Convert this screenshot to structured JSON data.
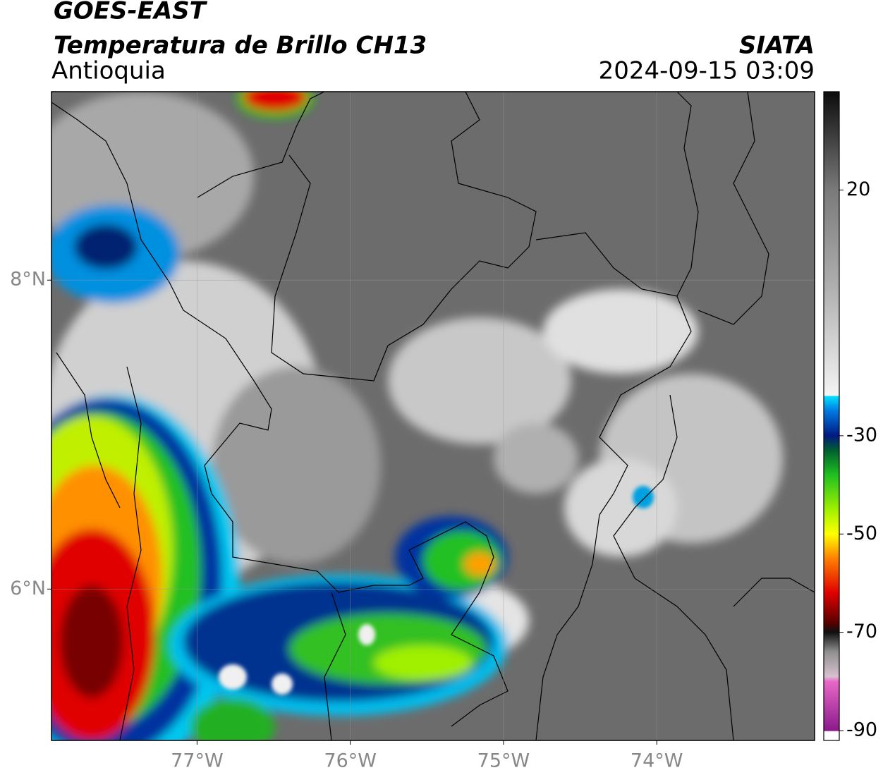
{
  "header": {
    "title": "GOES-EAST",
    "subtitle": "Temperatura de Brillo CH13",
    "region": "Antioquia",
    "source": "SIATA",
    "datetime": "2024-09-15 03:09"
  },
  "map": {
    "xlim": [
      -77.95,
      -72.97
    ],
    "ylim": [
      5.02,
      9.22
    ],
    "xticks": [
      {
        "value": -77,
        "label": "77°W"
      },
      {
        "value": -76,
        "label": "76°W"
      },
      {
        "value": -75,
        "label": "75°W"
      },
      {
        "value": -74,
        "label": "74°W"
      }
    ],
    "yticks": [
      {
        "value": 6,
        "label": "6°N"
      },
      {
        "value": 8,
        "label": "8°N"
      }
    ],
    "grid": true
  },
  "colorbar": {
    "lim": [
      -92,
      40
    ],
    "ticks": [
      20,
      -30,
      -50,
      -70,
      -90
    ],
    "colormap": [
      {
        "value": -92,
        "color": "#ffffff"
      },
      {
        "value": -90.2,
        "color": "#ffffff"
      },
      {
        "value": -90,
        "color": "#8a1a8a"
      },
      {
        "value": -80,
        "color": "#e868c8"
      },
      {
        "value": -79,
        "color": "#d8c0d0"
      },
      {
        "value": -74,
        "color": "#909090"
      },
      {
        "value": -70,
        "color": "#101010"
      },
      {
        "value": -68,
        "color": "#5a0000"
      },
      {
        "value": -62,
        "color": "#e00000"
      },
      {
        "value": -55,
        "color": "#ff8000"
      },
      {
        "value": -50,
        "color": "#ffff00"
      },
      {
        "value": -45,
        "color": "#a0f000"
      },
      {
        "value": -38,
        "color": "#20c020"
      },
      {
        "value": -33,
        "color": "#006030"
      },
      {
        "value": -30,
        "color": "#001a80"
      },
      {
        "value": -25,
        "color": "#0078e0"
      },
      {
        "value": -22,
        "color": "#00e0ff"
      },
      {
        "value": -21.8,
        "color": "#f4f4f4"
      },
      {
        "value": 0,
        "color": "#b0b0b0"
      },
      {
        "value": 20,
        "color": "#7a7a7a"
      },
      {
        "value": 40,
        "color": "#0c0c0c"
      }
    ]
  }
}
